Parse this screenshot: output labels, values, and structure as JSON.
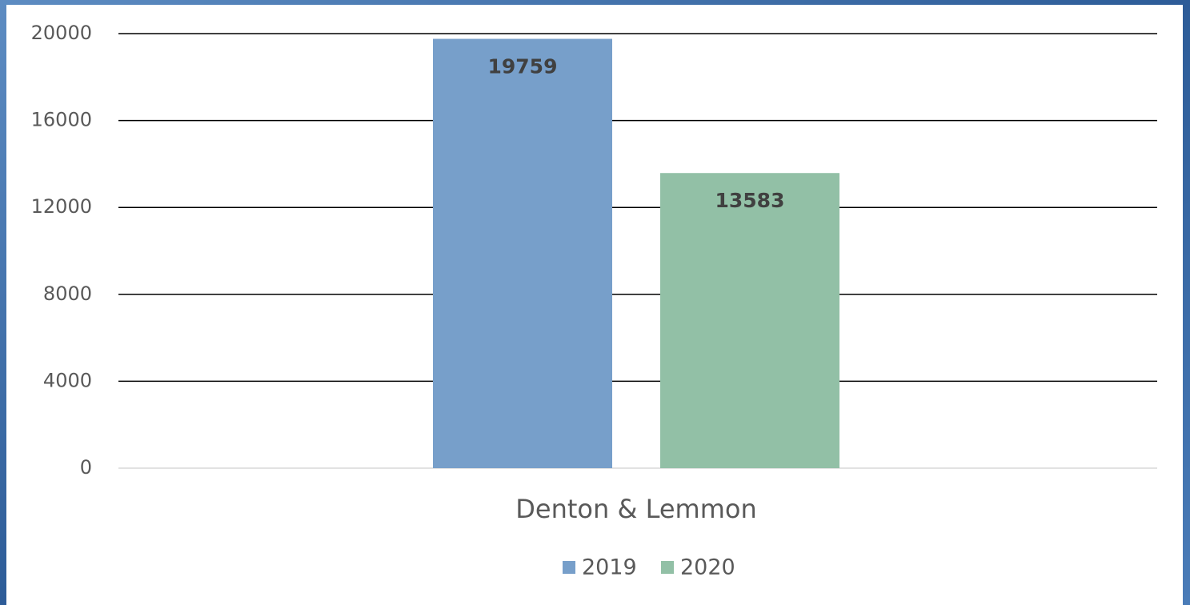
{
  "chart_data": {
    "type": "bar",
    "categories": [
      "Denton & Lemmon"
    ],
    "series": [
      {
        "name": "2019",
        "color": "#779fca",
        "values": [
          19759
        ]
      },
      {
        "name": "2020",
        "color": "#92c0a6",
        "values": [
          13583
        ]
      }
    ],
    "ylim": [
      0,
      20000
    ],
    "yticks": [
      0,
      4000,
      8000,
      12000,
      16000,
      20000
    ],
    "grid": true,
    "legend": "bottom",
    "data_labels": true
  }
}
